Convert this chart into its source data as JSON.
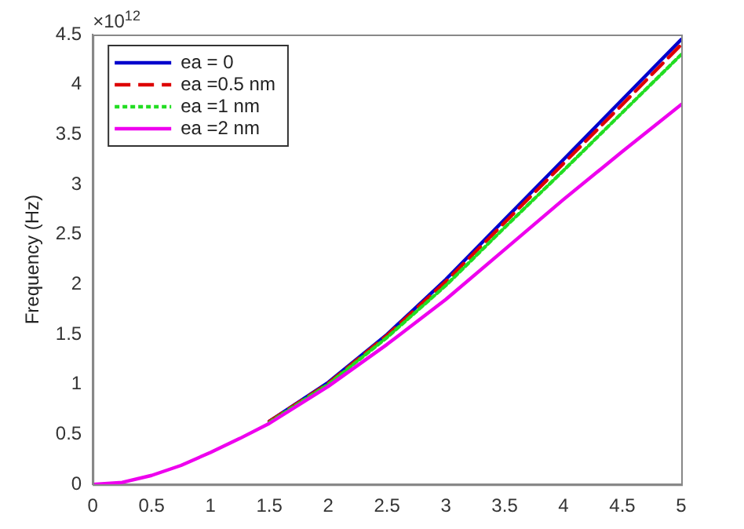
{
  "chart_data": {
    "type": "line",
    "ylabel": "Frequency (Hz)",
    "annotations": [
      "×10$^{12}$"
    ],
    "x": [
      0,
      0.25,
      0.5,
      0.75,
      1,
      1.25,
      1.5,
      2,
      2.5,
      3,
      3.5,
      4,
      4.5,
      5
    ],
    "series": [
      {
        "name": "ea = 0",
        "color": "#0000cc",
        "line_style": "solid",
        "values": [
          null,
          null,
          null,
          null,
          null,
          null,
          0.63,
          1.02,
          1.5,
          2.05,
          2.65,
          3.25,
          3.85,
          4.45
        ]
      },
      {
        "name": "ea =0.5 nm",
        "color": "#dd0000",
        "line_style": "dashed",
        "values": [
          null,
          null,
          null,
          null,
          null,
          null,
          0.63,
          1.01,
          1.49,
          2.03,
          2.62,
          3.21,
          3.8,
          4.4
        ]
      },
      {
        "name": "ea =1 nm",
        "color": "#22dd22",
        "line_style": "dotted",
        "values": [
          null,
          null,
          null,
          null,
          null,
          null,
          0.62,
          1.0,
          1.47,
          1.99,
          2.57,
          3.14,
          3.72,
          4.3
        ]
      },
      {
        "name": "ea =2 nm",
        "color": "#ee00ee",
        "line_style": "solid",
        "values": [
          0,
          0.02,
          0.09,
          0.19,
          0.32,
          0.46,
          0.61,
          0.98,
          1.4,
          1.85,
          2.35,
          2.85,
          3.33,
          3.8
        ]
      }
    ],
    "xlim": [
      0,
      5
    ],
    "xticks": [
      0,
      0.5,
      1,
      1.5,
      2,
      2.5,
      3,
      3.5,
      4,
      4.5,
      5
    ],
    "ylim": [
      0,
      4.5
    ],
    "yticks": [
      0,
      0.5,
      1,
      1.5,
      2,
      2.5,
      3,
      3.5,
      4,
      4.5
    ],
    "grid": false,
    "legend": "top left",
    "marker": "none"
  }
}
